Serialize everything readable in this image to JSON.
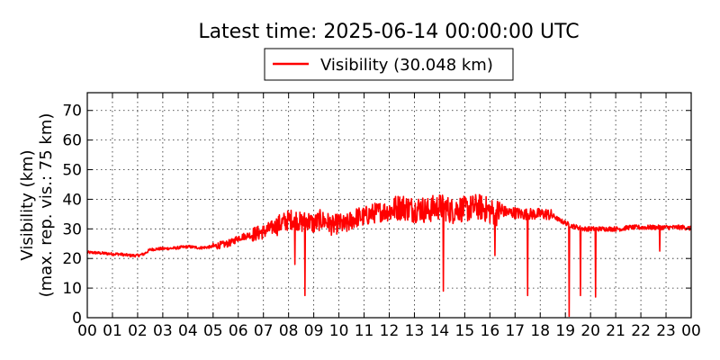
{
  "chart_data": {
    "type": "line",
    "title": "Latest time: 2025-06-14 00:00:00 UTC",
    "ylabel": "Visibility (km)",
    "ylabel2": "(max. rep. vis.: 75 km)",
    "xlabel": "",
    "xlim": [
      0,
      24
    ],
    "ylim": [
      0,
      76
    ],
    "grid": true,
    "legend_position": "top-center",
    "x_tick_labels": [
      "00",
      "01",
      "02",
      "03",
      "04",
      "05",
      "06",
      "07",
      "08",
      "09",
      "10",
      "11",
      "12",
      "13",
      "14",
      "15",
      "16",
      "17",
      "18",
      "19",
      "20",
      "21",
      "22",
      "23",
      "00"
    ],
    "y_ticks": [
      0,
      10,
      20,
      30,
      40,
      50,
      60,
      70
    ],
    "series": [
      {
        "name": "Visibility (30.048 km)",
        "color": "#ff0000",
        "x_hours": [
          0,
          0.25,
          0.5,
          0.75,
          1.0,
          1.25,
          1.5,
          1.75,
          2.0,
          2.25,
          2.5,
          2.75,
          3.0,
          3.25,
          3.5,
          3.75,
          4.0,
          4.25,
          4.5,
          4.75,
          5.0,
          5.25,
          5.5,
          5.75,
          6.0,
          6.25,
          6.5,
          6.75,
          7.0,
          7.25,
          7.5,
          7.75,
          8.0,
          8.25,
          8.5,
          8.75,
          9.0,
          9.25,
          9.5,
          9.75,
          10.0,
          10.25,
          10.5,
          10.75,
          11.0,
          11.25,
          11.5,
          11.75,
          12.0,
          12.25,
          12.5,
          12.75,
          13.0,
          13.25,
          13.5,
          13.75,
          14.0,
          14.25,
          14.5,
          14.75,
          15.0,
          15.25,
          15.5,
          15.75,
          16.0,
          16.25,
          16.5,
          16.75,
          17.0,
          17.25,
          17.5,
          17.75,
          18.0,
          18.25,
          18.5,
          18.75,
          19.0,
          19.25,
          19.5,
          19.75,
          20.0,
          20.25,
          20.5,
          20.75,
          21.0,
          21.25,
          21.5,
          21.75,
          22.0,
          22.25,
          22.5,
          22.75,
          23.0,
          23.25,
          23.5,
          23.75,
          24.0
        ],
        "values_km": [
          22,
          22,
          21.8,
          21.7,
          21.5,
          21.5,
          21.2,
          21,
          21,
          21.5,
          23,
          23.2,
          23.3,
          23.4,
          23.5,
          23.8,
          24,
          23.8,
          23.6,
          23.8,
          24,
          24.5,
          24.8,
          25.5,
          27,
          27.5,
          28,
          28.5,
          29,
          30,
          31,
          32,
          33,
          33.5,
          32,
          33,
          31.5,
          33,
          32.5,
          31,
          32,
          31,
          33,
          34,
          34,
          35,
          35.5,
          36,
          36,
          37,
          37.5,
          37,
          36.5,
          37,
          36,
          37,
          37.5,
          37,
          36,
          37,
          36.5,
          37,
          37.5,
          37,
          36,
          35.5,
          36,
          35.5,
          35.5,
          35,
          35,
          35,
          35,
          35,
          34.5,
          33,
          32,
          31,
          30.5,
          30,
          30,
          30,
          30,
          30,
          30,
          30,
          30.5,
          30.5,
          30.5,
          30.5,
          30.5,
          30.5,
          30.5,
          30.5,
          30.5,
          30.5,
          30.048
        ],
        "dips": [
          {
            "x": 8.25,
            "min": 18
          },
          {
            "x": 8.65,
            "min": 7.5
          },
          {
            "x": 14.15,
            "min": 9
          },
          {
            "x": 16.2,
            "min": 21
          },
          {
            "x": 17.5,
            "min": 7.5
          },
          {
            "x": 19.15,
            "min": 0.5
          },
          {
            "x": 19.6,
            "min": 7.5
          },
          {
            "x": 20.2,
            "min": 7
          },
          {
            "x": 22.75,
            "min": 22.5
          }
        ]
      }
    ]
  }
}
